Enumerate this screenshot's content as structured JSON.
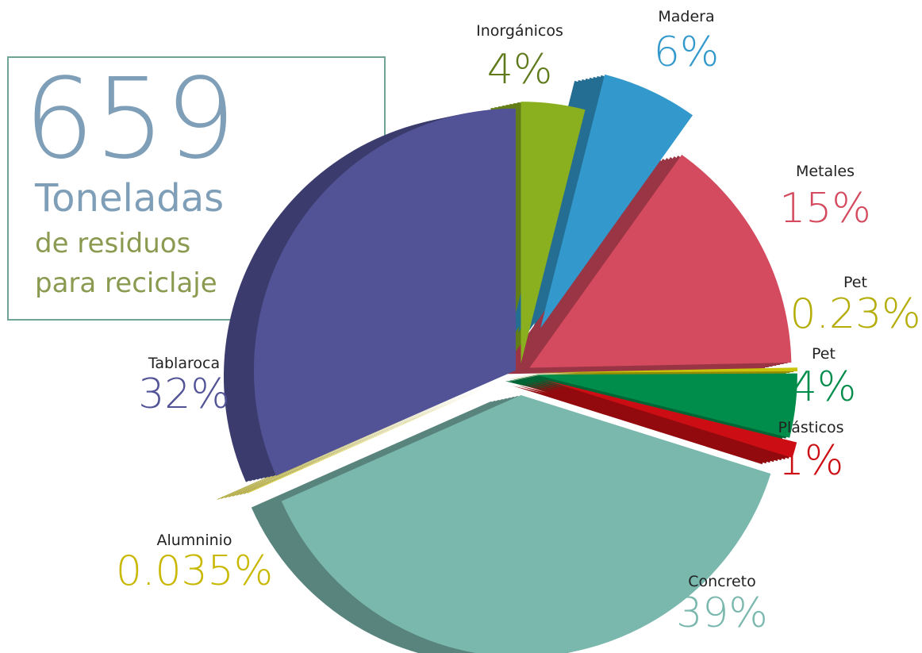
{
  "chart_data": {
    "type": "pie",
    "total": 659,
    "total_unit": "Toneladas",
    "subtitle_lines": [
      "de residuos",
      "para reciclaje"
    ],
    "categories": [
      "Inorgánicos",
      "Madera",
      "Metales",
      "Pet",
      "Pet",
      "Plásticos",
      "Concreto",
      "Alumninio",
      "Tablaroca"
    ],
    "values": [
      4,
      6,
      15,
      0.23,
      4,
      1,
      39,
      0.035,
      32
    ],
    "value_labels": [
      "4%",
      "6%",
      "15%",
      "0.23%",
      "4%",
      "1%",
      "39%",
      "0.035%",
      "32%"
    ],
    "colors": [
      "#8aaf1f",
      "#3399cc",
      "#d44a5e",
      "#c9c30a",
      "#008c4a",
      "#cc0e14",
      "#7ab8ae",
      "#d2c200",
      "#525397"
    ]
  }
}
